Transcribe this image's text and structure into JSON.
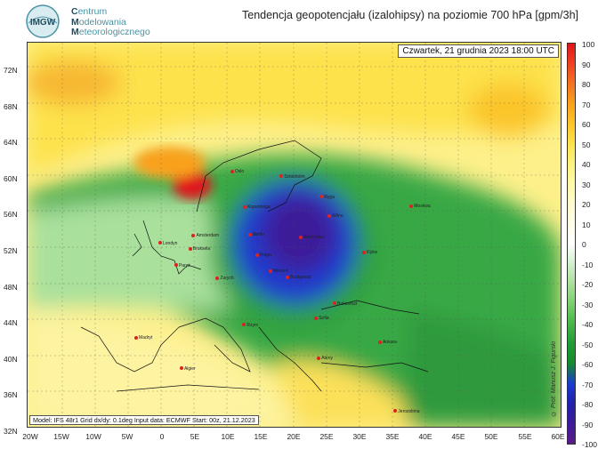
{
  "header": {
    "logo_letters": "IMGW",
    "org_line1_initial": "C",
    "org_line1_rest": "entrum",
    "org_line2_initial": "M",
    "org_line2_rest": "odelowania",
    "org_line3_initial": "M",
    "org_line3_rest": "eteorologicznego",
    "title": "Tendencja geopotencjału (izalohipsy) na poziomie 700 hPa  [gpm/3h]"
  },
  "map": {
    "valid_time": "Czwartek, 21 grudnia 2023 18:00 UTC",
    "model_info": "Model: IFS 48r1  Grid dx/dy: 0.1deg  Input data: ECMWF  Start: 00z, 21.12.2023",
    "copyright": "© Prof. Mariusz J. Figurski",
    "lat_labels": [
      "72N",
      "68N",
      "64N",
      "60N",
      "56N",
      "52N",
      "48N",
      "44N",
      "40N",
      "36N",
      "32N"
    ],
    "lon_labels": [
      "20W",
      "15W",
      "10W",
      "5W",
      "0",
      "5E",
      "10E",
      "15E",
      "20E",
      "25E",
      "30E",
      "35E",
      "40E",
      "45E",
      "50E",
      "55E",
      "60E"
    ],
    "cities": [
      {
        "name": "Oslo",
        "lon": 10.7,
        "lat": 59.9
      },
      {
        "name": "Sztokholm",
        "lon": 18.1,
        "lat": 59.3
      },
      {
        "name": "Ryga",
        "lon": 24.1,
        "lat": 56.9
      },
      {
        "name": "Kopenhaga",
        "lon": 12.6,
        "lat": 55.7
      },
      {
        "name": "Moskwa",
        "lon": 37.6,
        "lat": 55.8
      },
      {
        "name": "Wilno",
        "lon": 25.3,
        "lat": 54.7
      },
      {
        "name": "Warszawa",
        "lon": 21.0,
        "lat": 52.2
      },
      {
        "name": "Berlin",
        "lon": 13.4,
        "lat": 52.5
      },
      {
        "name": "Amsterdam",
        "lon": 4.9,
        "lat": 52.4
      },
      {
        "name": "Londyn",
        "lon": -0.1,
        "lat": 51.5
      },
      {
        "name": "Bruksela",
        "lon": 4.4,
        "lat": 50.8
      },
      {
        "name": "Praga",
        "lon": 14.4,
        "lat": 50.1
      },
      {
        "name": "Kijów",
        "lon": 30.5,
        "lat": 50.4
      },
      {
        "name": "Paryż",
        "lon": 2.3,
        "lat": 48.9
      },
      {
        "name": "Wiedeń",
        "lon": 16.4,
        "lat": 48.2
      },
      {
        "name": "Budapeszt",
        "lon": 19.0,
        "lat": 47.5
      },
      {
        "name": "Zurych",
        "lon": 8.5,
        "lat": 47.4
      },
      {
        "name": "Bukareszt",
        "lon": 26.1,
        "lat": 44.4
      },
      {
        "name": "Sofia",
        "lon": 23.3,
        "lat": 42.7
      },
      {
        "name": "Rzym",
        "lon": 12.5,
        "lat": 41.9
      },
      {
        "name": "Madryt",
        "lon": -3.7,
        "lat": 40.4
      },
      {
        "name": "Ankara",
        "lon": 32.9,
        "lat": 39.9
      },
      {
        "name": "Ateny",
        "lon": 23.7,
        "lat": 38.0
      },
      {
        "name": "Algier",
        "lon": 3.1,
        "lat": 36.8
      },
      {
        "name": "Jerozolima",
        "lon": 35.2,
        "lat": 31.8
      }
    ]
  },
  "colorbar": {
    "labels": [
      "100",
      "90",
      "80",
      "70",
      "60",
      "50",
      "40",
      "30",
      "20",
      "10",
      "0",
      "-10",
      "-20",
      "-30",
      "-40",
      "-50",
      "-60",
      "-70",
      "-80",
      "-90",
      "-100"
    ],
    "colors": [
      "#e1141a",
      "#ef4023",
      "#f5711f",
      "#f9a11b",
      "#fbc52a",
      "#fde24c",
      "#fdf17b",
      "#fefaa8",
      "#fffbcc",
      "#fffde5",
      "#ffffff",
      "#d2f0cc",
      "#a8e09c",
      "#7ccf71",
      "#48b64a",
      "#1f9c37",
      "#168a2c",
      "#1a3ad0",
      "#2020b0",
      "#3d1a99",
      "#5a1a8a"
    ]
  }
}
